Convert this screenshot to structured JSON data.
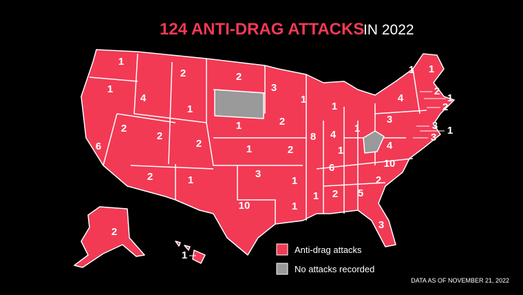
{
  "title": {
    "highlight": "124 ANTI-DRAG ATTACKS",
    "rest": "IN 2022"
  },
  "counts": [
    1,
    1,
    4,
    2,
    1,
    2,
    3,
    1,
    1,
    2,
    2,
    2,
    1,
    2,
    8,
    4,
    1,
    3,
    4,
    1,
    1,
    2,
    1,
    2,
    3,
    1,
    3,
    6,
    2,
    1,
    1,
    2,
    3,
    10,
    1,
    1,
    1,
    2,
    5,
    3,
    2,
    10,
    6,
    1,
    4,
    2,
    1
  ],
  "legend": [
    "Anti-drag attacks",
    "No attacks recorded"
  ],
  "note": "DATA AS OF NOVEMBER 21, 2022"
}
